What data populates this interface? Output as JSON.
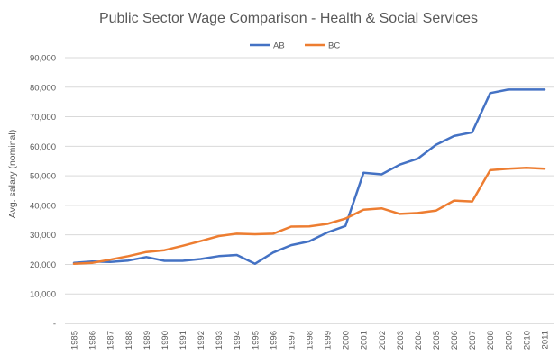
{
  "chart_data": {
    "type": "line",
    "title": "Public Sector Wage Comparison - Health & Social Services",
    "xlabel": "",
    "ylabel": "Avg. salary (nominal)",
    "categories": [
      "1985",
      "1986",
      "1987",
      "1988",
      "1989",
      "1990",
      "1991",
      "1992",
      "1993",
      "1994",
      "1995",
      "1996",
      "1997",
      "1998",
      "1999",
      "2000",
      "2001",
      "2002",
      "2003",
      "2004",
      "2005",
      "2006",
      "2007",
      "2008",
      "2009",
      "2010",
      "2011"
    ],
    "ylim": [
      0,
      90000
    ],
    "yticks": [
      0,
      10000,
      20000,
      30000,
      40000,
      50000,
      60000,
      70000,
      80000,
      90000
    ],
    "ytick_labels": [
      "-",
      "10,000",
      "20,000",
      "30,000",
      "40,000",
      "50,000",
      "60,000",
      "70,000",
      "80,000",
      "90,000"
    ],
    "grid": true,
    "legend_position": "top-center",
    "series": [
      {
        "name": "AB",
        "color": "#4472c4",
        "values": [
          20500,
          21000,
          20800,
          21300,
          22500,
          21200,
          21200,
          21800,
          22800,
          23200,
          20200,
          24000,
          26500,
          27800,
          30800,
          33000,
          51000,
          50500,
          53800,
          55800,
          60500,
          63500,
          64700,
          78000,
          79200,
          79200,
          79200
        ]
      },
      {
        "name": "BC",
        "color": "#ed7d31",
        "values": [
          20200,
          20500,
          21600,
          22800,
          24200,
          24800,
          26300,
          27900,
          29600,
          30400,
          30200,
          30400,
          32800,
          32900,
          33700,
          35500,
          38500,
          39000,
          37100,
          37400,
          38200,
          41600,
          41300,
          51900,
          52400,
          52700,
          52400
        ]
      }
    ]
  }
}
